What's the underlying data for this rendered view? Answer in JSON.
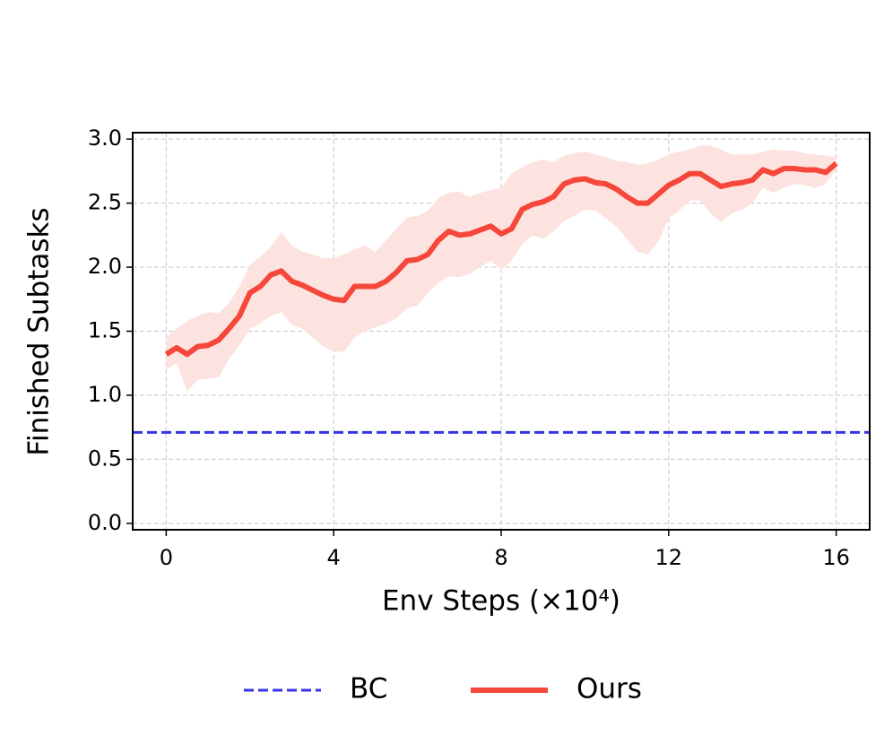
{
  "chart_data": {
    "type": "line",
    "xlabel": "Env Steps (×10⁴)",
    "ylabel": "Finished Subtasks",
    "xlim": [
      -0.8,
      16.8
    ],
    "ylim": [
      -0.05,
      3.05
    ],
    "xticks": [
      0,
      4,
      8,
      12,
      16
    ],
    "yticks": [
      {
        "value": 0,
        "label": "0.0"
      },
      {
        "value": 0.5,
        "label": "0.5"
      },
      {
        "value": 1,
        "label": "1.0"
      },
      {
        "value": 1.5,
        "label": "1.5"
      },
      {
        "value": 2,
        "label": "2.0"
      },
      {
        "value": 2.5,
        "label": "2.5"
      },
      {
        "value": 3,
        "label": "3.0"
      }
    ],
    "grid": true,
    "legend": "bottom",
    "series": [
      {
        "name": "BC",
        "color": "#3535e8",
        "style": "dashed",
        "y": 0.71
      },
      {
        "name": "Ours",
        "color": "#f5473a",
        "style": "solid",
        "band_color": "#fde3e0",
        "x": [
          0,
          0.25,
          0.5,
          0.75,
          1,
          1.25,
          1.5,
          1.75,
          2,
          2.25,
          2.5,
          2.75,
          3,
          3.25,
          3.5,
          3.75,
          4,
          4.25,
          4.5,
          4.75,
          5,
          5.25,
          5.5,
          5.75,
          6,
          6.25,
          6.5,
          6.75,
          7,
          7.25,
          7.5,
          7.75,
          8,
          8.25,
          8.5,
          8.75,
          9,
          9.25,
          9.5,
          9.75,
          10,
          10.25,
          10.5,
          10.75,
          11,
          11.25,
          11.5,
          11.75,
          12,
          12.25,
          12.5,
          12.75,
          13,
          13.25,
          13.5,
          13.75,
          14,
          14.25,
          14.5,
          14.75,
          15,
          15.25,
          15.5,
          15.75,
          16
        ],
        "values": [
          1.32,
          1.37,
          1.32,
          1.38,
          1.39,
          1.43,
          1.52,
          1.62,
          1.8,
          1.85,
          1.94,
          1.97,
          1.89,
          1.86,
          1.82,
          1.78,
          1.75,
          1.74,
          1.85,
          1.85,
          1.85,
          1.89,
          1.96,
          2.05,
          2.06,
          2.1,
          2.21,
          2.28,
          2.25,
          2.26,
          2.29,
          2.32,
          2.26,
          2.3,
          2.45,
          2.49,
          2.51,
          2.55,
          2.65,
          2.68,
          2.69,
          2.66,
          2.65,
          2.61,
          2.55,
          2.5,
          2.5,
          2.57,
          2.64,
          2.68,
          2.73,
          2.73,
          2.68,
          2.63,
          2.65,
          2.66,
          2.68,
          2.76,
          2.73,
          2.77,
          2.77,
          2.76,
          2.76,
          2.74,
          2.81
        ],
        "upper": [
          1.45,
          1.52,
          1.58,
          1.62,
          1.65,
          1.64,
          1.72,
          1.85,
          2.02,
          2.08,
          2.16,
          2.27,
          2.17,
          2.12,
          2.1,
          2.07,
          2.07,
          2.1,
          2.14,
          2.17,
          2.12,
          2.21,
          2.3,
          2.39,
          2.4,
          2.44,
          2.54,
          2.58,
          2.59,
          2.55,
          2.58,
          2.6,
          2.62,
          2.73,
          2.78,
          2.82,
          2.84,
          2.82,
          2.87,
          2.89,
          2.9,
          2.88,
          2.86,
          2.83,
          2.82,
          2.8,
          2.81,
          2.84,
          2.88,
          2.9,
          2.92,
          2.95,
          2.95,
          2.92,
          2.88,
          2.88,
          2.88,
          2.9,
          2.92,
          2.91,
          2.91,
          2.89,
          2.88,
          2.87,
          2.86
        ],
        "lower": [
          1.2,
          1.25,
          1.03,
          1.12,
          1.13,
          1.14,
          1.28,
          1.39,
          1.52,
          1.56,
          1.62,
          1.65,
          1.55,
          1.52,
          1.45,
          1.38,
          1.34,
          1.34,
          1.45,
          1.5,
          1.53,
          1.56,
          1.6,
          1.68,
          1.7,
          1.8,
          1.88,
          1.93,
          1.92,
          1.95,
          2.0,
          2.05,
          1.98,
          2.05,
          2.18,
          2.25,
          2.22,
          2.28,
          2.36,
          2.4,
          2.45,
          2.44,
          2.38,
          2.32,
          2.22,
          2.12,
          2.1,
          2.2,
          2.38,
          2.44,
          2.52,
          2.52,
          2.42,
          2.35,
          2.42,
          2.45,
          2.5,
          2.62,
          2.58,
          2.62,
          2.65,
          2.64,
          2.62,
          2.65,
          2.76
        ]
      }
    ]
  }
}
